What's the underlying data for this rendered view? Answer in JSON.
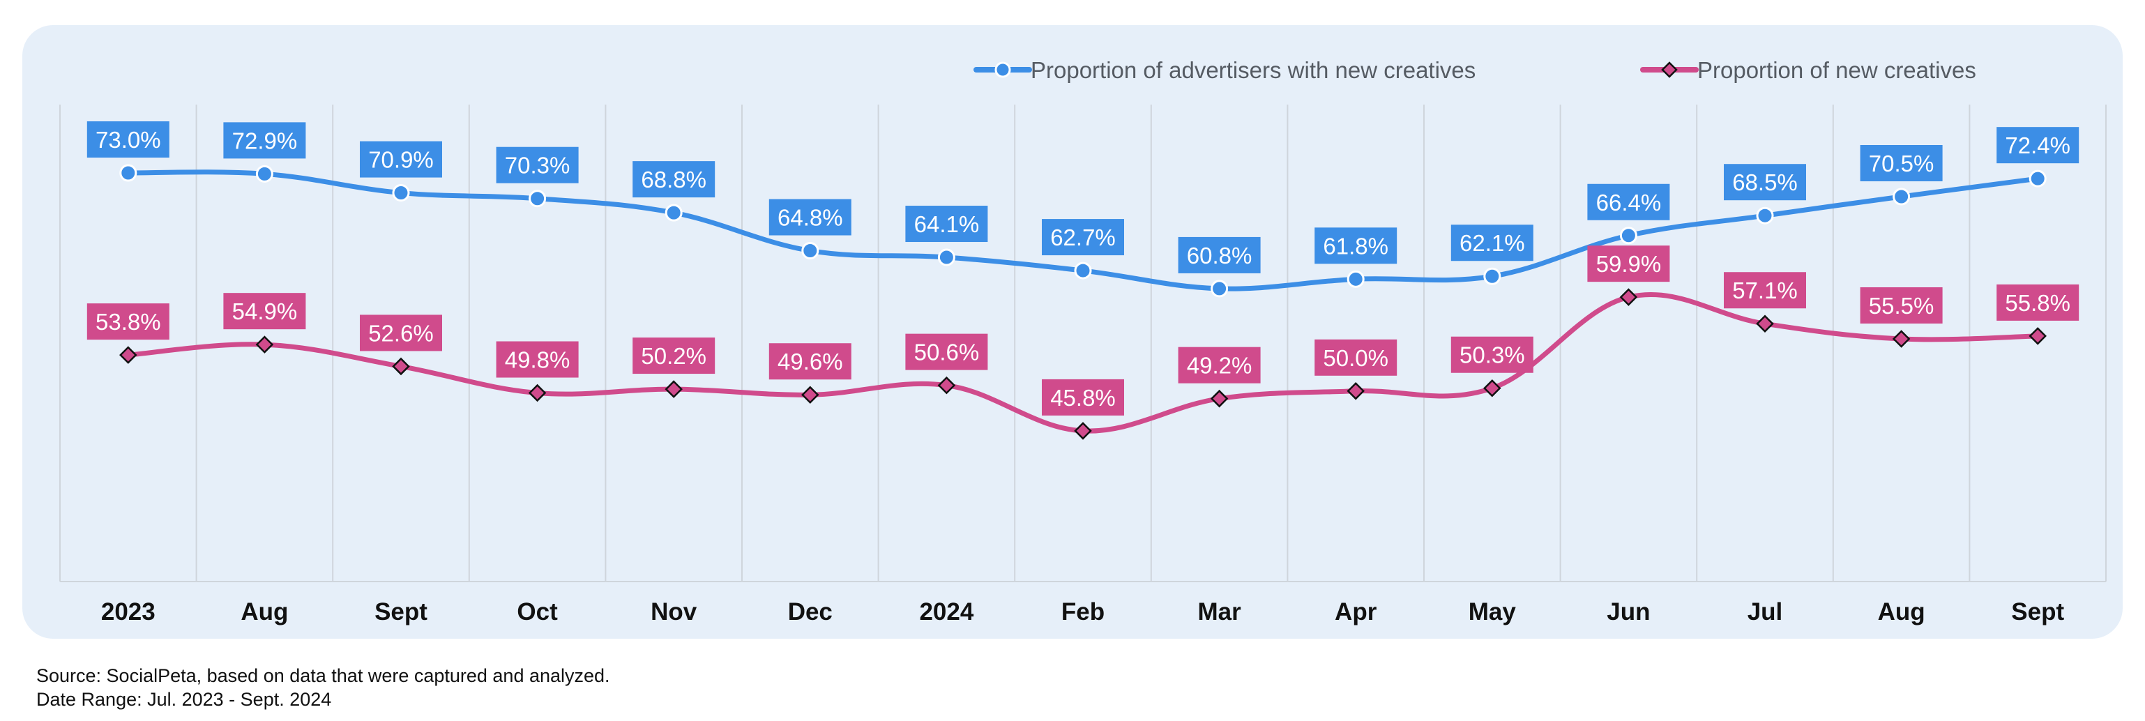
{
  "colors": {
    "panel_bg": "#e6eff9",
    "grid": "#cfd5dc",
    "series_advertisers": "#3c8ee6",
    "series_creatives": "#d04b8c"
  },
  "chart_data": {
    "type": "line",
    "categories": [
      "2023",
      "Aug",
      "Sept",
      "Oct",
      "Nov",
      "Dec",
      "2024",
      "Feb",
      "Mar",
      "Apr",
      "May",
      "Jun",
      "Jul",
      "Aug",
      "Sept"
    ],
    "series": [
      {
        "name": "Proportion of advertisers with new creatives",
        "values": [
          73.0,
          72.9,
          70.9,
          70.3,
          68.8,
          64.8,
          64.1,
          62.7,
          60.8,
          61.8,
          62.1,
          66.4,
          68.5,
          70.5,
          72.4
        ],
        "labels": [
          "73.0%",
          "72.9%",
          "70.9%",
          "70.3%",
          "68.8%",
          "64.8%",
          "64.1%",
          "62.7%",
          "60.8%",
          "61.8%",
          "62.1%",
          "66.4%",
          "68.5%",
          "70.5%",
          "72.4%"
        ],
        "color": "#3c8ee6",
        "marker": "circle"
      },
      {
        "name": "Proportion of new creatives",
        "values": [
          53.8,
          54.9,
          52.6,
          49.8,
          50.2,
          49.6,
          50.6,
          45.8,
          49.2,
          50.0,
          50.3,
          59.9,
          57.1,
          55.5,
          55.8
        ],
        "labels": [
          "53.8%",
          "54.9%",
          "52.6%",
          "49.8%",
          "50.2%",
          "49.6%",
          "50.6%",
          "45.8%",
          "49.2%",
          "50.0%",
          "50.3%",
          "59.9%",
          "57.1%",
          "55.5%",
          "55.8%"
        ],
        "color": "#d04b8c",
        "marker": "diamond"
      }
    ],
    "bold_categories": [
      "2023",
      "2024"
    ],
    "title": "",
    "xlabel": "",
    "ylabel": "",
    "ylim": [
      25,
      80
    ],
    "grid": "vertical",
    "legend": "top-right"
  },
  "footer": {
    "source": "Source: SocialPeta, based on data that were captured and analyzed.",
    "date_range": "Date Range: Jul. 2023 - Sept. 2024"
  }
}
